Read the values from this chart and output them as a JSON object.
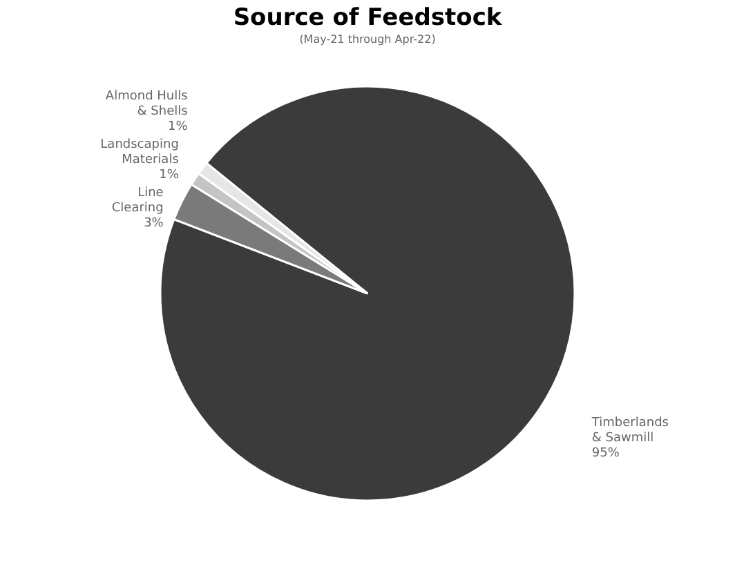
{
  "chart_data": {
    "type": "pie",
    "title": "Source of Feedstock",
    "subtitle": "(May-21 through Apr-22)",
    "categories": [
      "Timberlands & Sawmill",
      "Line Clearing",
      "Landscaping Materials",
      "Almond Hulls & Shells"
    ],
    "values": [
      95,
      3,
      1,
      1
    ],
    "value_labels": [
      "95%",
      "3%",
      "1%",
      "1%"
    ],
    "colors": [
      "#3b3b3b",
      "#7a7a7a",
      "#c4c4c4",
      "#e6e6e6"
    ],
    "legend": false
  }
}
